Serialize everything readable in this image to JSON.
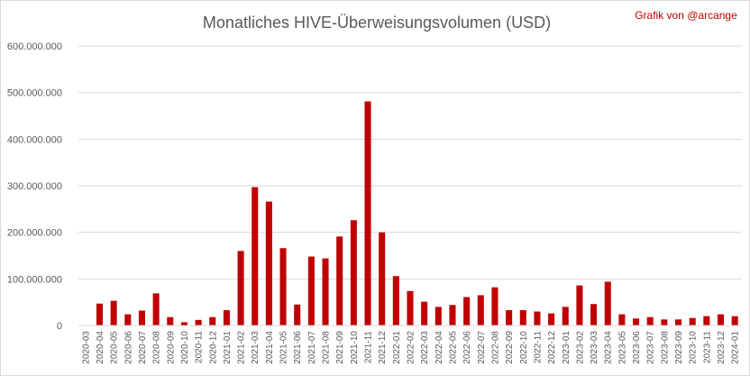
{
  "chart_data": {
    "type": "bar",
    "title": "Monatliches HIVE-Überweisungsvolumen (USD)",
    "credit": "Grafik von @arcange",
    "xlabel": "",
    "ylabel": "",
    "ylim": [
      0,
      600000000
    ],
    "yticks": [
      0,
      100000000,
      200000000,
      300000000,
      400000000,
      500000000,
      600000000
    ],
    "ytick_labels": [
      "0",
      "100.000.000",
      "200.000.000",
      "300.000.000",
      "400.000.000",
      "500.000.000",
      "600.000.000"
    ],
    "grid": true,
    "legend": "none",
    "bar_color": "#c00000",
    "categories": [
      "2020-03",
      "2020-04",
      "2020-05",
      "2020-06",
      "2020-07",
      "2020-08",
      "2020-09",
      "2020-10",
      "2020-11",
      "2020-12",
      "2021-01",
      "2021-02",
      "2021-03",
      "2021-04",
      "2021-05",
      "2021-06",
      "2021-07",
      "2021-08",
      "2021-09",
      "2021-10",
      "2021-11",
      "2021-12",
      "2022-01",
      "2022-02",
      "2022-03",
      "2022-04",
      "2022-05",
      "2022-06",
      "2022-07",
      "2022-08",
      "2022-09",
      "2022-10",
      "2022-11",
      "2022-12",
      "2023-01",
      "2023-02",
      "2023-03",
      "2023-04",
      "2023-05",
      "2023-06",
      "2023-07",
      "2023-08",
      "2023-09",
      "2023-10",
      "2023-11",
      "2023-12",
      "2024-01"
    ],
    "values": [
      0,
      47000000,
      53000000,
      24000000,
      32000000,
      69000000,
      18000000,
      7000000,
      12000000,
      18000000,
      33000000,
      160000000,
      297000000,
      266000000,
      166000000,
      45000000,
      148000000,
      144000000,
      191000000,
      226000000,
      481000000,
      200000000,
      106000000,
      74000000,
      51000000,
      40000000,
      44000000,
      61000000,
      65000000,
      82000000,
      33000000,
      33000000,
      30000000,
      26000000,
      40000000,
      86000000,
      46000000,
      94000000,
      24000000,
      15000000,
      18000000,
      13000000,
      13000000,
      16000000,
      20000000,
      24000000,
      20000000
    ]
  }
}
